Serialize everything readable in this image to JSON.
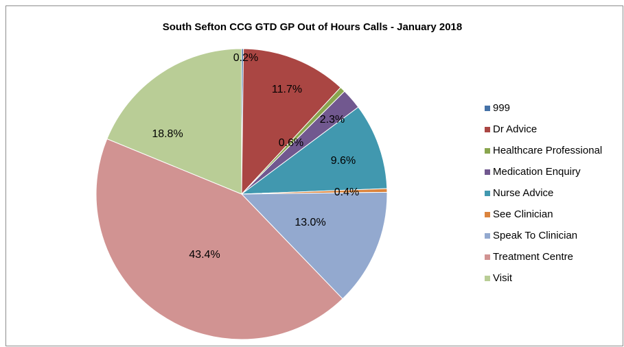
{
  "chart_data": {
    "type": "pie",
    "title": "South Sefton CCG GTD GP Out of Hours Calls - January 2018",
    "categories": [
      "999",
      "Dr Advice",
      "Healthcare Professional",
      "Medication Enquiry",
      "Nurse Advice",
      "See Clinician",
      "Speak To Clinician",
      "Treatment Centre",
      "Visit"
    ],
    "values": [
      0.2,
      11.7,
      0.6,
      2.3,
      9.6,
      0.4,
      13.0,
      43.4,
      18.8
    ],
    "value_labels": [
      "0.2%",
      "11.7%",
      "0.6%",
      "2.3%",
      "9.6%",
      "0.4%",
      "13.0%",
      "43.4%",
      "18.8%"
    ],
    "colors": [
      "#4572a7",
      "#aa4643",
      "#89a54e",
      "#71588f",
      "#4198af",
      "#db843d",
      "#93a9cf",
      "#d19392",
      "#b9cd96"
    ],
    "legend": "right"
  }
}
